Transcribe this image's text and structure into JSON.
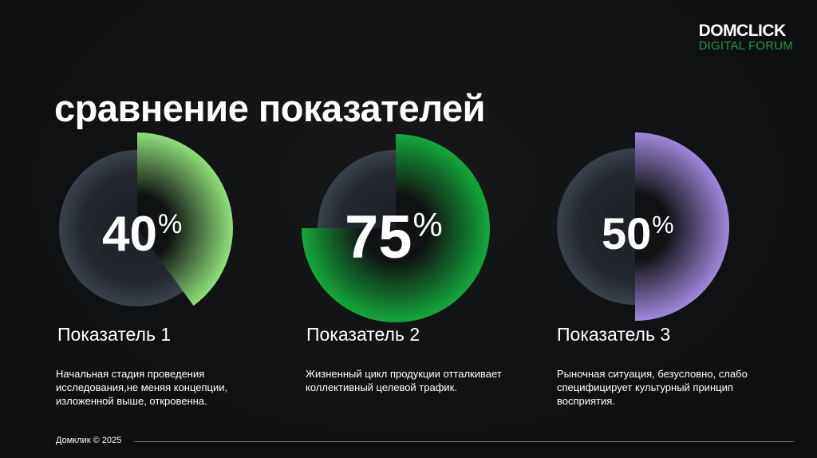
{
  "logo": {
    "top": "DOMCLICK",
    "bottom": "DIGITAL FORUM"
  },
  "title": "сравнение показателей",
  "metrics": [
    {
      "value": "40",
      "unit": "%",
      "fraction": 0.4,
      "name": "Показатель 1",
      "description": "Начальная стадия проведения исследования,не меняя концепции, изложенной выше, откровенна.",
      "color": "#8fe07a"
    },
    {
      "value": "75",
      "unit": "%",
      "fraction": 0.75,
      "name": "Показатель 2",
      "description": "Жизненный цикл продукции отталкивает коллективный целевой трафик.",
      "color": "#13a83a"
    },
    {
      "value": "50",
      "unit": "%",
      "fraction": 0.5,
      "name": "Показатель 3",
      "description": "Рыночная ситуация, безусловно, слабо специфицирует культурный принцип восприятия.",
      "color": "#9f88dc"
    }
  ],
  "footer": "Домклик © 2025"
}
